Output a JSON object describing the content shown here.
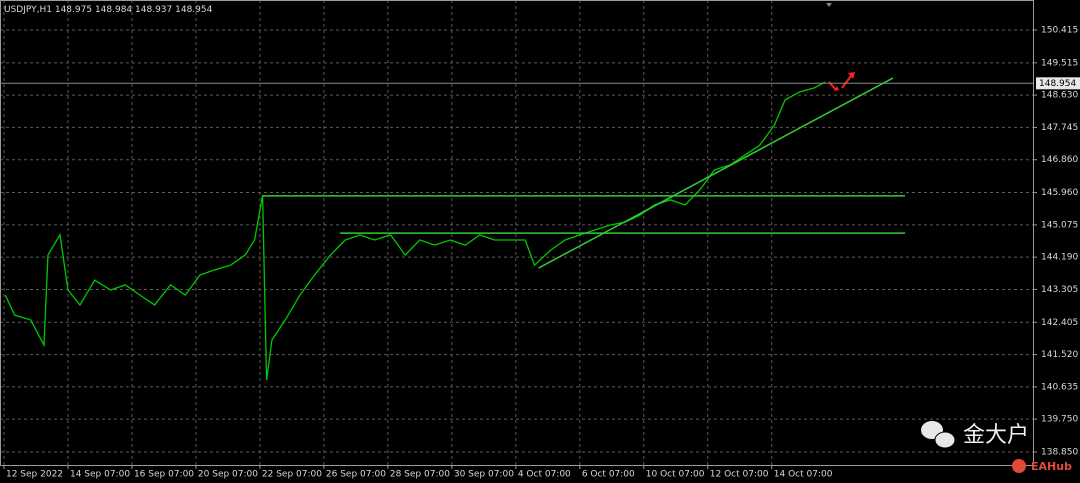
{
  "chart_data": {
    "type": "line",
    "symbol": "USDJPY,H1",
    "ohlc": [
      148.975,
      148.984,
      148.937,
      148.954
    ],
    "last_price": 148.954,
    "watermark": "金大户",
    "logo": "EAHub",
    "xlim": [
      0,
      775
    ],
    "ylim": [
      138.494,
      151.237
    ],
    "grid": true,
    "xticks": [
      {
        "value": 3,
        "label": "12 Sep 2022"
      },
      {
        "value": 51,
        "label": "14 Sep 07:00"
      },
      {
        "value": 99,
        "label": "16 Sep 07:00"
      },
      {
        "value": 147,
        "label": "20 Sep 07:00"
      },
      {
        "value": 195,
        "label": "22 Sep 07:00"
      },
      {
        "value": 243,
        "label": "26 Sep 07:00"
      },
      {
        "value": 291,
        "label": "28 Sep 07:00"
      },
      {
        "value": 339,
        "label": "30 Sep 07:00"
      },
      {
        "value": 387,
        "label": "4 Oct 07:00"
      },
      {
        "value": 435,
        "label": "6 Oct 07:00"
      },
      {
        "value": 483,
        "label": "10 Oct 07:00"
      },
      {
        "value": 531,
        "label": "12 Oct 07:00"
      },
      {
        "value": 579,
        "label": "14 Oct 07:00"
      }
    ],
    "yticks": [
      150.415,
      149.515,
      {
        "value": 148.63,
        "label": "148.630"
      },
      147.745,
      {
        "value": 146.86,
        "label": "146.860"
      },
      {
        "value": 145.96,
        "label": "145.960"
      },
      145.075,
      {
        "value": 144.19,
        "label": "144.190"
      },
      143.305,
      142.405,
      {
        "value": 141.52,
        "label": "141.520"
      },
      140.635,
      {
        "value": 139.75,
        "label": "139.750"
      },
      {
        "value": 138.85,
        "label": "138.850"
      }
    ],
    "series": [
      {
        "color": "#00c800",
        "x": [
          4,
          11,
          23,
          33,
          36,
          45,
          51,
          60,
          71,
          83,
          94,
          105,
          116,
          128,
          139,
          150,
          161,
          173,
          184,
          191,
          197,
          200,
          204,
          214,
          225,
          236,
          248,
          259,
          270,
          281,
          293,
          304,
          315,
          326,
          338,
          349,
          360,
          371,
          383,
          394,
          401,
          413,
          424,
          435,
          446,
          458,
          469,
          480,
          491,
          503,
          514,
          525,
          536,
          548,
          559,
          570,
          581,
          589,
          600,
          611,
          619
        ],
        "values": [
          143.15,
          142.6,
          142.47,
          141.78,
          144.25,
          144.8,
          143.29,
          142.88,
          143.56,
          143.29,
          143.43,
          143.15,
          142.88,
          143.43,
          143.15,
          143.7,
          143.84,
          143.97,
          144.25,
          144.66,
          145.89,
          140.82,
          141.92,
          142.47,
          143.15,
          143.7,
          144.25,
          144.66,
          144.8,
          144.66,
          144.8,
          144.25,
          144.66,
          144.52,
          144.66,
          144.52,
          144.8,
          144.66,
          144.66,
          144.66,
          143.97,
          144.38,
          144.66,
          144.8,
          144.93,
          145.07,
          145.15,
          145.34,
          145.62,
          145.76,
          145.62,
          146.03,
          146.58,
          146.72,
          146.99,
          147.26,
          147.81,
          148.5,
          148.72,
          148.83,
          148.99
        ]
      },
      {
        "color": "#32cd32",
        "x": [
          197,
          679
        ],
        "values": [
          145.87,
          145.87
        ]
      },
      {
        "color": "#32cd32",
        "x": [
          255,
          679
        ],
        "values": [
          144.85,
          144.85
        ]
      },
      {
        "color": "#32cd32",
        "x": [
          404,
          670
        ],
        "values": [
          143.89,
          149.1
        ]
      }
    ]
  }
}
